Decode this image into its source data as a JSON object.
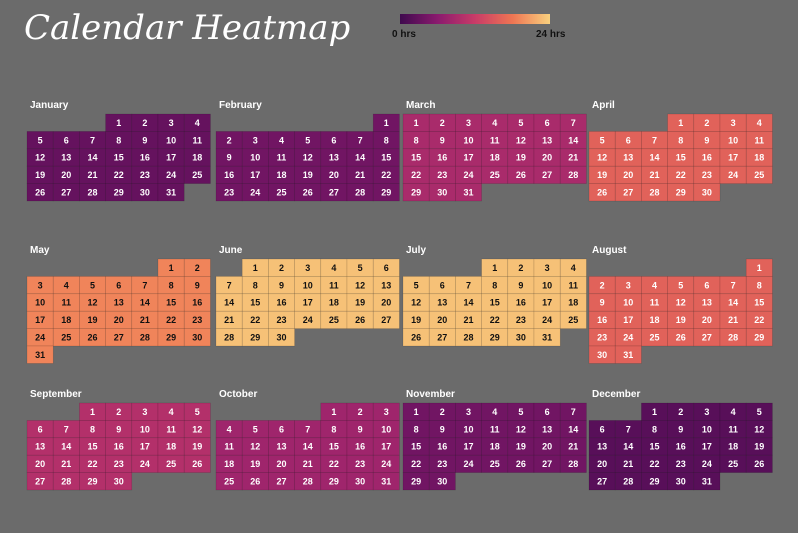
{
  "title": "Calendar Heatmap",
  "legend": {
    "min_label": "0 hrs",
    "max_label": "24 hrs",
    "min_value": 0,
    "max_value": 24,
    "colors": [
      "#3f0a4e",
      "#8a1a6e",
      "#c83b68",
      "#ee7553",
      "#f8d07e"
    ]
  },
  "chart_data": {
    "type": "heatmap",
    "title": "Calendar Heatmap",
    "value_range": [
      0,
      24
    ],
    "months": [
      {
        "name": "January",
        "days": 31,
        "start_weekday": 3,
        "value": 3
      },
      {
        "name": "February",
        "days": 29,
        "start_weekday": 6,
        "value": 4
      },
      {
        "name": "March",
        "days": 31,
        "start_weekday": 0,
        "value": 9
      },
      {
        "name": "April",
        "days": 30,
        "start_weekday": 3,
        "value": 16
      },
      {
        "name": "May",
        "days": 31,
        "start_weekday": 5,
        "value": 19
      },
      {
        "name": "June",
        "days": 30,
        "start_weekday": 1,
        "value": 23
      },
      {
        "name": "July",
        "days": 31,
        "start_weekday": 3,
        "value": 23
      },
      {
        "name": "August",
        "days": 31,
        "start_weekday": 6,
        "value": 16
      },
      {
        "name": "September",
        "days": 30,
        "start_weekday": 2,
        "value": 10
      },
      {
        "name": "October",
        "days": 31,
        "start_weekday": 4,
        "value": 8
      },
      {
        "name": "November",
        "days": 30,
        "start_weekday": 0,
        "value": 4
      },
      {
        "name": "December",
        "days": 31,
        "start_weekday": 2,
        "value": 2
      }
    ]
  }
}
